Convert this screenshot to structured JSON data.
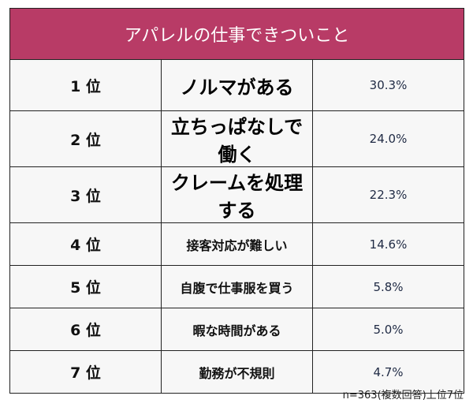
{
  "title": "アパレルの仕事できついこと",
  "header_color": "#b83b66",
  "rows": [
    {
      "rank": "1 位",
      "item": "ノルマがある",
      "percent": "30.3%"
    },
    {
      "rank": "2 位",
      "item": "立ちっぱなしで働く",
      "percent": "24.0%"
    },
    {
      "rank": "3 位",
      "item": "クレームを処理する",
      "percent": "22.3%"
    },
    {
      "rank": "4 位",
      "item": "接客対応が難しい",
      "percent": "14.6%"
    },
    {
      "rank": "5 位",
      "item": "自腹で仕事服を買う",
      "percent": "5.8%"
    },
    {
      "rank": "6 位",
      "item": "暇な時間がある",
      "percent": "5.0%"
    },
    {
      "rank": "7 位",
      "item": "勤務が不規則",
      "percent": "4.7%"
    }
  ],
  "note": "n=363(複数回答)上位7位"
}
